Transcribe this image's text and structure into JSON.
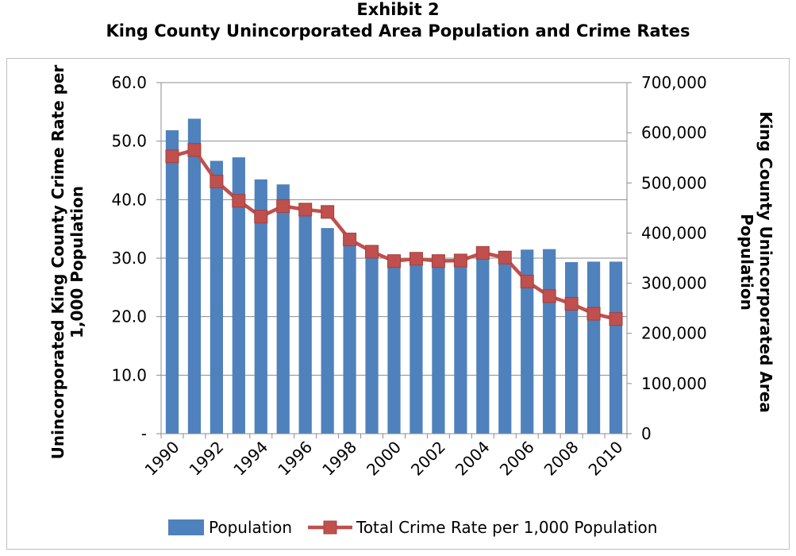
{
  "chart_data": {
    "type": "bar",
    "title": "Exhibit 2",
    "subtitle": "King County Unincorporated Area Population and Crime Rates",
    "categories": [
      "1990",
      "1991",
      "1992",
      "1993",
      "1994",
      "1995",
      "1996",
      "1997",
      "1998",
      "1999",
      "2000",
      "2001",
      "2002",
      "2003",
      "2004",
      "2005",
      "2006",
      "2007",
      "2008",
      "2009",
      "2010"
    ],
    "x_tick_labels": [
      "1990",
      "1992",
      "1994",
      "1996",
      "1998",
      "2000",
      "2002",
      "2004",
      "2006",
      "2008",
      "2010"
    ],
    "left_axis": {
      "label": "Unincorporated King County Crime Rate per 1,000 Population",
      "range": [
        0,
        60
      ],
      "ticks": [
        "-",
        "10.0",
        "20.0",
        "30.0",
        "40.0",
        "50.0",
        "60.0"
      ]
    },
    "right_axis": {
      "label": "King County Unincorporated Area Population",
      "range": [
        0,
        700000
      ],
      "ticks": [
        "0",
        "100,000",
        "200,000",
        "300,000",
        "400,000",
        "500,000",
        "600,000",
        "700,000"
      ]
    },
    "series": [
      {
        "name": "Population",
        "type": "bar",
        "axis": "right",
        "color": "#4f81bd",
        "values": [
          605000,
          628000,
          544000,
          551000,
          507000,
          497000,
          456000,
          410000,
          380000,
          362000,
          348000,
          351000,
          347000,
          347000,
          367000,
          360000,
          367000,
          368000,
          342000,
          343000,
          343000
        ]
      },
      {
        "name": "Total Crime Rate per 1,000 Population",
        "type": "line",
        "axis": "left",
        "color": "#c0504d",
        "values": [
          47.4,
          48.5,
          43.1,
          39.8,
          37.1,
          38.9,
          38.3,
          37.9,
          33.2,
          31.1,
          29.5,
          29.9,
          29.5,
          29.6,
          30.9,
          30.1,
          26.0,
          23.5,
          22.2,
          20.5,
          19.6
        ]
      }
    ],
    "grid": true,
    "legend_position": "bottom"
  }
}
